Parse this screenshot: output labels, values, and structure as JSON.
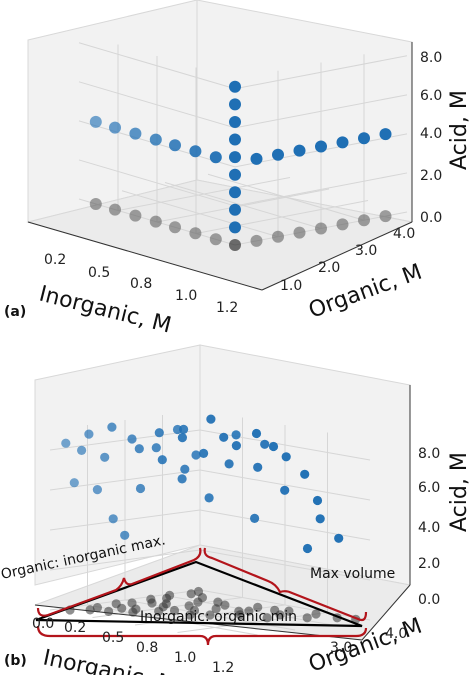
{
  "chart_data": [
    {
      "panel": "(a)",
      "type": "scatter3d",
      "xlabel": "Inorganic, M",
      "ylabel": "Organic, M",
      "zlabel": "Acid, M",
      "xticks": [
        "0.2",
        "0.5",
        "0.8",
        "1.0",
        "1.2"
      ],
      "yticks": [
        "1.0",
        "2.0",
        "3.0",
        "4.0"
      ],
      "zticks": [
        "0.0",
        "2.0",
        "4.0",
        "6.0",
        "8.0"
      ],
      "xlim": [
        0,
        1.3
      ],
      "ylim": [
        0,
        4
      ],
      "zlim": [
        0,
        8.5
      ],
      "grid": true,
      "series": [
        {
          "color": "#1f6fb4",
          "points": [
            [
              0,
              0,
              0.9
            ],
            [
              0,
              0,
              1.8
            ],
            [
              0,
              0,
              2.7
            ],
            [
              0,
              0,
              3.6
            ],
            [
              0,
              0,
              4.5
            ],
            [
              0,
              0,
              5.4
            ],
            [
              0,
              0,
              6.3
            ],
            [
              0,
              0,
              7.2
            ],
            [
              0,
              0,
              8.1
            ],
            [
              0.16,
              0,
              4.2
            ],
            [
              0.33,
              0,
              4.2
            ],
            [
              0.5,
              0,
              4.2
            ],
            [
              0.66,
              0,
              4.2
            ],
            [
              0.83,
              0,
              4.2
            ],
            [
              1.0,
              0,
              4.2
            ],
            [
              1.16,
              0,
              4.2
            ],
            [
              0,
              0.5,
              4.2
            ],
            [
              0,
              1.0,
              4.2
            ],
            [
              0,
              1.5,
              4.2
            ],
            [
              0,
              2.0,
              4.2
            ],
            [
              0,
              2.5,
              4.2
            ],
            [
              0,
              3.0,
              4.2
            ],
            [
              0,
              3.5,
              4.2
            ]
          ]
        },
        {
          "color": "#555555",
          "points": [
            [
              0.16,
              0,
              0
            ],
            [
              0.33,
              0,
              0
            ],
            [
              0.5,
              0,
              0
            ],
            [
              0.66,
              0,
              0
            ],
            [
              0.83,
              0,
              0
            ],
            [
              1.0,
              0,
              0
            ],
            [
              1.16,
              0,
              0
            ],
            [
              0,
              0.5,
              0
            ],
            [
              0,
              1.0,
              0
            ],
            [
              0,
              1.5,
              0
            ],
            [
              0,
              2.0,
              0
            ],
            [
              0,
              2.5,
              0
            ],
            [
              0,
              3.0,
              0
            ],
            [
              0,
              3.5,
              0
            ]
          ]
        },
        {
          "color": "#000000",
          "points": [
            [
              0,
              0,
              0
            ]
          ]
        }
      ]
    },
    {
      "panel": "(b)",
      "type": "scatter3d",
      "xlabel": "Inorganic, M",
      "ylabel": "Organic, M",
      "zlabel": "Acid, M",
      "xticks": [
        "0.0",
        "0.2",
        "0.5",
        "0.8",
        "1.0",
        "1.2"
      ],
      "yticks": [
        "1.0",
        "2.0",
        "3.0",
        "4.0"
      ],
      "zticks": [
        "0.0",
        "2.0",
        "4.0",
        "6.0",
        "8.0"
      ],
      "xlim": [
        0,
        1.3
      ],
      "ylim": [
        0,
        4
      ],
      "zlim": [
        0,
        9
      ],
      "grid": true,
      "annotations": [
        "Organic: inorganic max.",
        "Max volume",
        "Inorganic: organic min"
      ],
      "series": [
        {
          "color": "#1f6fb4",
          "points": [
            [
              1.2,
              0.1,
              8.3
            ],
            [
              1.1,
              0.2,
              7.9
            ],
            [
              1.0,
              0.1,
              8.6
            ],
            [
              0.9,
              0.2,
              7.4
            ],
            [
              1.2,
              0.3,
              6.4
            ],
            [
              0.8,
              0.1,
              8.8
            ],
            [
              0.7,
              0.3,
              8.2
            ],
            [
              0.6,
              0.2,
              7.6
            ],
            [
              0.5,
              0.4,
              8.4
            ],
            [
              0.4,
              0.2,
              6.9
            ],
            [
              0.3,
              0.4,
              8.0
            ],
            [
              0.6,
              0.6,
              7.8
            ],
            [
              0.4,
              0.7,
              8.6
            ],
            [
              0.3,
              0.9,
              7.4
            ],
            [
              0.2,
              1.1,
              8.2
            ],
            [
              0.5,
              1.0,
              6.8
            ],
            [
              0.2,
              1.4,
              7.9
            ],
            [
              0.1,
              1.6,
              8.5
            ],
            [
              0.3,
              1.5,
              7.1
            ],
            [
              0.1,
              2.0,
              8.0
            ],
            [
              0.2,
              1.9,
              7.0
            ],
            [
              0.1,
              2.3,
              7.6
            ],
            [
              0.05,
              2.6,
              6.8
            ],
            [
              0.15,
              2.4,
              6.0
            ],
            [
              0.05,
              2.9,
              5.6
            ],
            [
              0.1,
              3.1,
              4.8
            ],
            [
              0.05,
              3.4,
              3.9
            ],
            [
              0.1,
              2.8,
              3.2
            ],
            [
              0.4,
              1.3,
              5.4
            ],
            [
              0.3,
              2.1,
              4.6
            ],
            [
              0.7,
              0.5,
              5.8
            ],
            [
              0.9,
              0.4,
              4.4
            ],
            [
              0.6,
              1.1,
              8.9
            ],
            [
              0.2,
              0.8,
              9.0
            ],
            [
              0.45,
              0.8,
              6.2
            ],
            [
              0.8,
              0.4,
              3.5
            ],
            [
              0.25,
              2.2,
              8.3
            ],
            [
              0.35,
              1.8,
              8.7
            ],
            [
              1.0,
              0.3,
              5.9
            ],
            [
              0.55,
              1.4,
              7.7
            ]
          ]
        },
        {
          "color": "#333333",
          "points": [
            [
              0.05,
              0.1,
              0
            ],
            [
              0.15,
              0.2,
              0
            ],
            [
              0.3,
              0.1,
              0
            ],
            [
              0.4,
              0.3,
              0
            ],
            [
              0.5,
              0.2,
              0
            ],
            [
              0.6,
              0.5,
              0
            ],
            [
              0.7,
              0.3,
              0
            ],
            [
              0.8,
              0.2,
              0
            ],
            [
              0.9,
              0.6,
              0
            ],
            [
              1.0,
              0.3,
              0
            ],
            [
              1.1,
              0.4,
              0
            ],
            [
              1.2,
              0.2,
              0
            ],
            [
              0.2,
              0.6,
              0
            ],
            [
              0.35,
              0.9,
              0
            ],
            [
              0.5,
              1.1,
              0
            ],
            [
              0.65,
              0.9,
              0
            ],
            [
              0.8,
              1.2,
              0
            ],
            [
              0.95,
              1.0,
              0
            ],
            [
              0.3,
              1.4,
              0
            ],
            [
              0.45,
              1.6,
              0
            ],
            [
              0.6,
              1.5,
              0
            ],
            [
              0.75,
              1.8,
              0
            ],
            [
              0.2,
              1.9,
              0
            ],
            [
              0.35,
              2.1,
              0
            ],
            [
              0.5,
              2.3,
              0
            ],
            [
              0.65,
              2.0,
              0
            ],
            [
              0.15,
              2.5,
              0
            ],
            [
              0.3,
              2.7,
              0
            ],
            [
              0.45,
              2.8,
              0
            ],
            [
              0.1,
              3.0,
              0
            ],
            [
              0.25,
              3.2,
              0
            ],
            [
              0.1,
              3.5,
              0
            ],
            [
              0.05,
              3.8,
              0
            ],
            [
              0.55,
              0.7,
              0
            ],
            [
              0.25,
              1.1,
              0
            ],
            [
              0.85,
              0.8,
              0
            ],
            [
              1.05,
              0.7,
              0
            ],
            [
              0.4,
              2.0,
              0
            ],
            [
              0.2,
              2.3,
              0
            ],
            [
              0.7,
              1.3,
              0
            ]
          ]
        }
      ]
    }
  ]
}
